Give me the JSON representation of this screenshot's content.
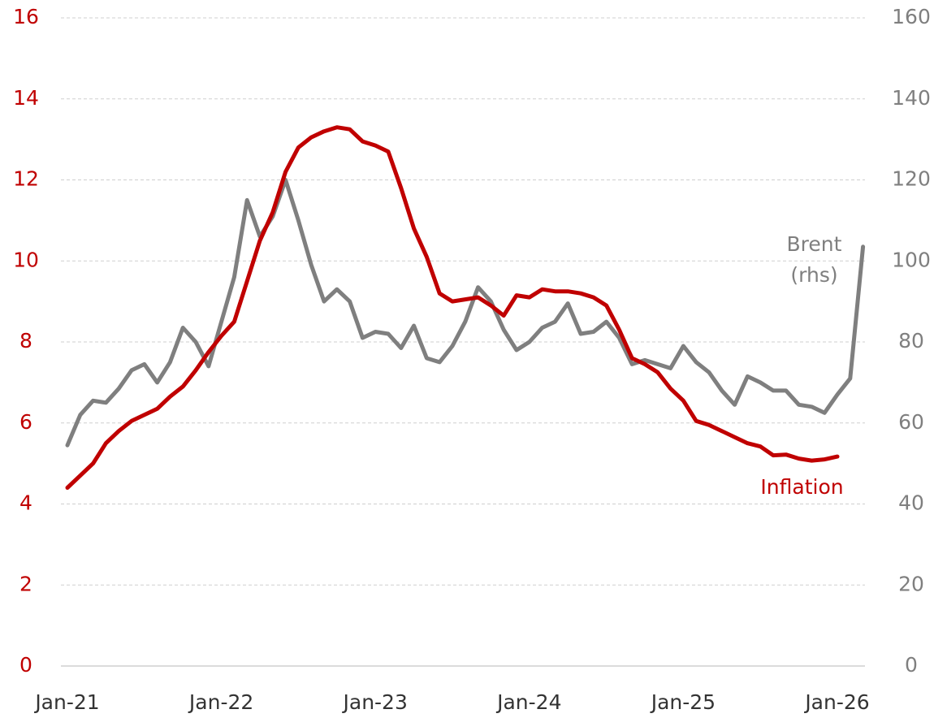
{
  "chart_data": {
    "type": "line",
    "categories": [
      "Jan-21",
      null,
      null,
      null,
      null,
      null,
      null,
      null,
      null,
      null,
      null,
      null,
      "Jan-22",
      null,
      null,
      null,
      null,
      null,
      null,
      null,
      null,
      null,
      null,
      null,
      "Jan-23",
      null,
      null,
      null,
      null,
      null,
      null,
      null,
      null,
      null,
      null,
      null,
      "Jan-24",
      null,
      null,
      null,
      null,
      null,
      null,
      null,
      null,
      null,
      null,
      null,
      "Jan-25",
      null,
      null,
      null,
      null,
      null,
      null,
      null,
      null,
      null,
      null,
      null,
      "Jan-26",
      null,
      null
    ],
    "series": [
      {
        "name": "Inflation",
        "color": "#c00000",
        "axis": "y",
        "values": [
          4.4,
          4.7,
          5.0,
          5.5,
          5.8,
          6.05,
          6.2,
          6.35,
          6.65,
          6.9,
          7.3,
          7.75,
          8.15,
          8.5,
          9.5,
          10.5,
          11.2,
          12.2,
          12.8,
          13.05,
          13.2,
          13.3,
          13.25,
          12.95,
          12.85,
          12.7,
          11.8,
          10.8,
          10.1,
          9.2,
          9.0,
          9.05,
          9.1,
          8.9,
          8.65,
          9.15,
          9.1,
          9.3,
          9.25,
          9.25,
          9.2,
          9.1,
          8.9,
          8.3,
          7.6,
          7.45,
          7.25,
          6.85,
          6.55,
          6.05,
          5.95,
          5.8,
          5.65,
          5.5,
          5.42,
          5.2,
          5.22,
          5.12,
          5.07,
          5.1,
          5.17,
          null,
          null
        ]
      },
      {
        "name": "Brent (rhs)",
        "color": "#7f7f7f",
        "axis": "y2",
        "values": [
          54.5,
          62,
          65.5,
          65,
          68.5,
          73,
          74.5,
          70,
          75,
          83.5,
          80,
          74,
          85,
          96,
          115,
          106,
          111,
          120,
          110,
          99,
          90,
          93,
          90,
          81,
          82.5,
          82,
          78.5,
          84,
          76,
          75,
          79,
          85,
          93.5,
          90,
          83,
          78,
          80,
          83.5,
          85,
          89.5,
          82,
          82.5,
          85,
          81,
          74.5,
          75.5,
          74.5,
          73.5,
          79,
          75,
          72.5,
          68,
          64.5,
          71.5,
          70,
          68,
          68,
          64.5,
          64,
          62.5,
          67,
          71,
          103.5
        ]
      }
    ],
    "ylim": [
      0,
      16
    ],
    "yticks": [
      0,
      2,
      4,
      6,
      8,
      10,
      12,
      14,
      16
    ],
    "y2lim": [
      0,
      160
    ],
    "y2ticks": [
      0,
      20,
      40,
      60,
      80,
      100,
      120,
      140,
      160
    ],
    "grid": true
  }
}
